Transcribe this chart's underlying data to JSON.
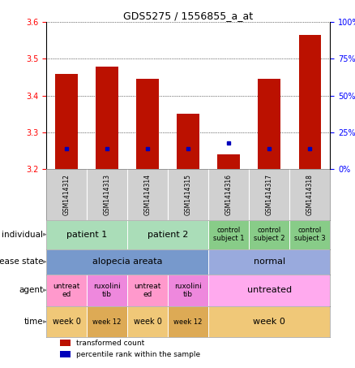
{
  "title": "GDS5275 / 1556855_a_at",
  "samples": [
    "GSM1414312",
    "GSM1414313",
    "GSM1414314",
    "GSM1414315",
    "GSM1414316",
    "GSM1414317",
    "GSM1414318"
  ],
  "bar_values": [
    3.46,
    3.48,
    3.445,
    3.35,
    3.24,
    3.445,
    3.565
  ],
  "bar_base": 3.2,
  "percentile_values": [
    14,
    14,
    14,
    14,
    18,
    14,
    14
  ],
  "ylim": [
    3.2,
    3.6
  ],
  "y2lim": [
    0,
    100
  ],
  "yticks": [
    3.2,
    3.3,
    3.4,
    3.5,
    3.6
  ],
  "y2ticks": [
    0,
    25,
    50,
    75,
    100
  ],
  "bar_color": "#bb1100",
  "percentile_color": "#0000bb",
  "gsm_box_color": "#d0d0d0",
  "annotations": {
    "individual": {
      "label": "individual",
      "groups": [
        {
          "text": "patient 1",
          "cols": [
            0,
            1
          ],
          "color": "#aaddb8",
          "fontsize": 8
        },
        {
          "text": "patient 2",
          "cols": [
            2,
            3
          ],
          "color": "#aaddb8",
          "fontsize": 8
        },
        {
          "text": "control\nsubject 1",
          "cols": [
            4
          ],
          "color": "#88cc88",
          "fontsize": 6
        },
        {
          "text": "control\nsubject 2",
          "cols": [
            5
          ],
          "color": "#88cc88",
          "fontsize": 6
        },
        {
          "text": "control\nsubject 3",
          "cols": [
            6
          ],
          "color": "#88cc88",
          "fontsize": 6
        }
      ]
    },
    "disease_state": {
      "label": "disease state",
      "groups": [
        {
          "text": "alopecia areata",
          "cols": [
            0,
            1,
            2,
            3
          ],
          "color": "#7799cc",
          "fontsize": 8
        },
        {
          "text": "normal",
          "cols": [
            4,
            5,
            6
          ],
          "color": "#99aadd",
          "fontsize": 8
        }
      ]
    },
    "agent": {
      "label": "agent",
      "groups": [
        {
          "text": "untreat\ned",
          "cols": [
            0
          ],
          "color": "#ff99cc",
          "fontsize": 6.5
        },
        {
          "text": "ruxolini\ntib",
          "cols": [
            1
          ],
          "color": "#ee88dd",
          "fontsize": 6.5
        },
        {
          "text": "untreat\ned",
          "cols": [
            2
          ],
          "color": "#ff99cc",
          "fontsize": 6.5
        },
        {
          "text": "ruxolini\ntib",
          "cols": [
            3
          ],
          "color": "#ee88dd",
          "fontsize": 6.5
        },
        {
          "text": "untreated",
          "cols": [
            4,
            5,
            6
          ],
          "color": "#ffaaee",
          "fontsize": 8
        }
      ]
    },
    "time": {
      "label": "time",
      "groups": [
        {
          "text": "week 0",
          "cols": [
            0
          ],
          "color": "#f0c878",
          "fontsize": 7
        },
        {
          "text": "week 12",
          "cols": [
            1
          ],
          "color": "#ddaa55",
          "fontsize": 6
        },
        {
          "text": "week 0",
          "cols": [
            2
          ],
          "color": "#f0c878",
          "fontsize": 7
        },
        {
          "text": "week 12",
          "cols": [
            3
          ],
          "color": "#ddaa55",
          "fontsize": 6
        },
        {
          "text": "week 0",
          "cols": [
            4,
            5,
            6
          ],
          "color": "#f0c878",
          "fontsize": 8
        }
      ]
    }
  },
  "legend": [
    {
      "color": "#bb1100",
      "label": "transformed count"
    },
    {
      "color": "#0000bb",
      "label": "percentile rank within the sample"
    }
  ]
}
